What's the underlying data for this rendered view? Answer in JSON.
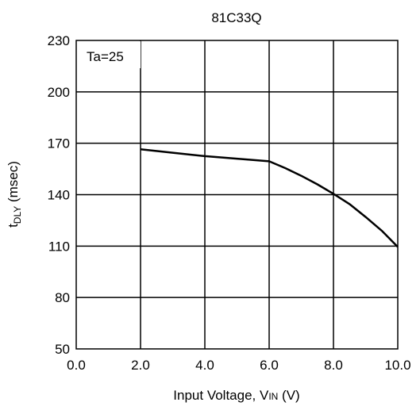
{
  "chart_data": {
    "type": "line",
    "title": "81C33Q",
    "xlabel": "Input Voltage, VIN (V)",
    "xlabel_parts": {
      "main": "Input Voltage, V",
      "sub": "IN",
      "unit": " (V)"
    },
    "ylabel": "tDLY (msec)",
    "ylabel_parts": {
      "main": "t",
      "sub": "DLY",
      "unit": " (msec)"
    },
    "xlim": [
      0,
      10
    ],
    "ylim": [
      50,
      230
    ],
    "x_ticks": [
      0,
      2,
      4,
      6,
      8,
      10
    ],
    "x_tick_labels": [
      "0.0",
      "2.0",
      "4.0",
      "6.0",
      "8.0",
      "10.0"
    ],
    "y_ticks": [
      50,
      80,
      110,
      140,
      170,
      200,
      230
    ],
    "y_tick_labels": [
      "50",
      "80",
      "110",
      "140",
      "170",
      "200",
      "230"
    ],
    "grid": true,
    "annotation": "Ta=25",
    "line_color": "#000000",
    "series": [
      {
        "x": [
          2.0,
          3.0,
          4.0,
          5.0,
          6.0,
          6.5,
          7.0,
          7.5,
          8.0,
          8.5,
          9.0,
          9.5,
          10.0
        ],
        "y": [
          166.5,
          164.5,
          162.5,
          161.0,
          159.5,
          155.5,
          151.0,
          146.0,
          140.5,
          134.5,
          127.0,
          119.0,
          109.5
        ]
      }
    ]
  }
}
